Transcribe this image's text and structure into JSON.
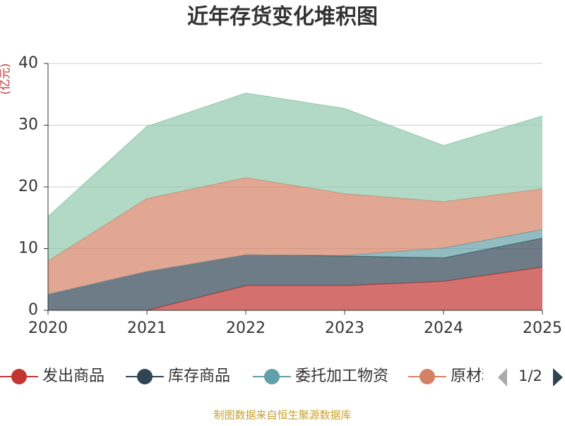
{
  "chart_data": {
    "type": "stacked-area",
    "title": "近年存货变化堆积图",
    "y_label": "(亿元)",
    "categories": [
      "2020",
      "2021",
      "2022",
      "2023",
      "2024",
      "2025"
    ],
    "series": [
      {
        "name": "发出商品",
        "color": "#c23531",
        "values": [
          0,
          0,
          4.0,
          4.0,
          4.7,
          7.0
        ]
      },
      {
        "name": "库存商品",
        "color": "#2f4554",
        "values": [
          2.6,
          6.3,
          5.0,
          4.8,
          3.8,
          4.7
        ]
      },
      {
        "name": "委托加工物资",
        "color": "#61a0a8",
        "values": [
          0,
          0,
          0,
          0.1,
          1.6,
          1.4
        ]
      },
      {
        "name": "原材料",
        "color": "#d48265",
        "values": [
          5.4,
          11.8,
          12.5,
          10.0,
          7.5,
          6.6
        ]
      },
      {
        "color": "#91c7ae",
        "values": [
          7.2,
          11.7,
          13.7,
          13.8,
          9.1,
          11.8
        ]
      }
    ],
    "ylim": [
      0,
      40
    ],
    "yticks": [
      0,
      10,
      20,
      30,
      40
    ],
    "grid": true,
    "legend_page": "1/2",
    "source": "制图数据来自恒生聚源数据库"
  }
}
